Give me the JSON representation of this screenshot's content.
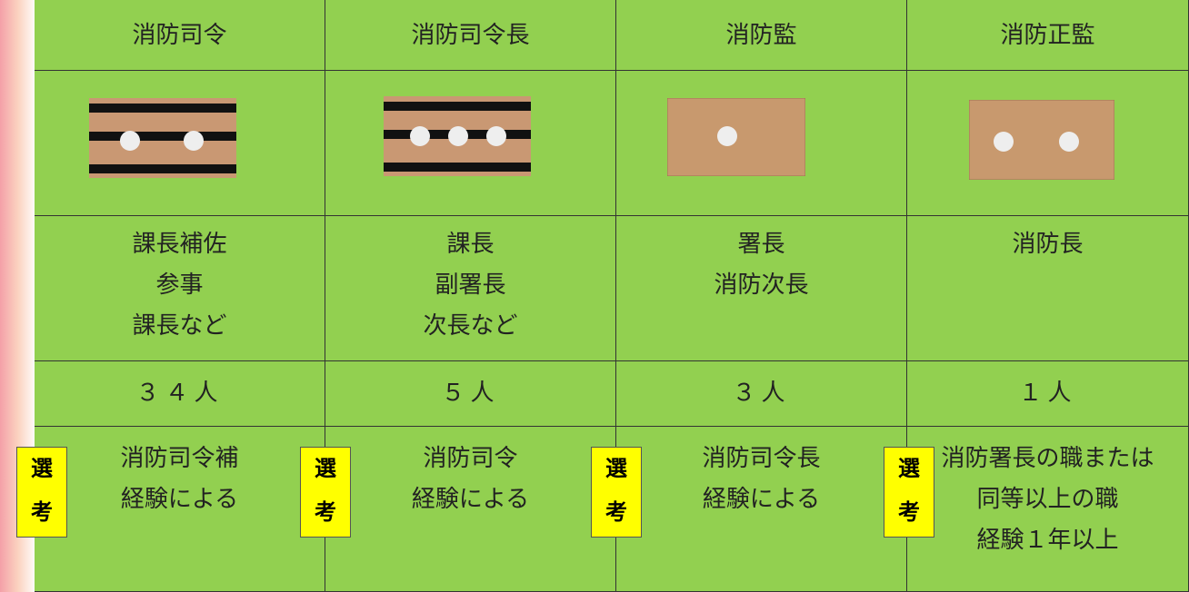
{
  "table": {
    "header": [
      "消防司令",
      "消防司令長",
      "消防監",
      "消防正監"
    ],
    "duties": [
      [
        "課長補佐",
        "参事",
        "課長など"
      ],
      [
        "課長",
        "副署長",
        "次長など"
      ],
      [
        "署長",
        "消防次長"
      ],
      [
        "消防長"
      ]
    ],
    "count": [
      "３４人",
      "５人",
      "３人",
      "１人"
    ],
    "promotion": [
      {
        "badge": [
          "選",
          "考"
        ],
        "lines": [
          "消防司令補",
          "経験による"
        ]
      },
      {
        "badge": [
          "選",
          "考"
        ],
        "lines": [
          "消防司令",
          "経験による"
        ]
      },
      {
        "badge": [
          "選",
          "考"
        ],
        "lines": [
          "消防司令長",
          "経験による"
        ]
      },
      {
        "badge": [
          "選",
          "考"
        ],
        "lines": [
          "消防署長の職または",
          "同等以上の職",
          "経験１年以上"
        ]
      }
    ]
  }
}
